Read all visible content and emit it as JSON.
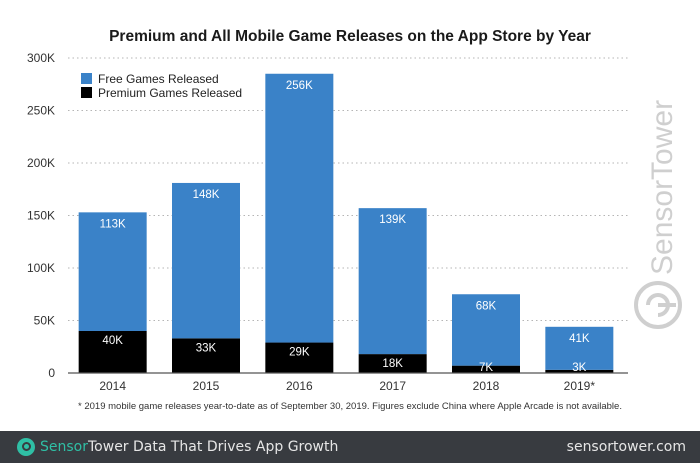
{
  "chart_data": {
    "type": "bar",
    "stacked": true,
    "title": "Premium and All Mobile Game Releases on the App Store by Year",
    "xlabel": "",
    "ylabel": "",
    "categories": [
      "2014",
      "2015",
      "2016",
      "2017",
      "2018",
      "2019*"
    ],
    "series": [
      {
        "name": "Premium Games Released",
        "color": "#000000",
        "values": [
          40,
          33,
          29,
          18,
          7,
          3
        ],
        "labels": [
          "40K",
          "33K",
          "29K",
          "18K",
          "7K",
          "3K"
        ]
      },
      {
        "name": "Free Games Released",
        "color": "#3a82c8",
        "values": [
          113,
          148,
          256,
          139,
          68,
          41
        ],
        "labels": [
          "113K",
          "148K",
          "256K",
          "139K",
          "68K",
          "41K"
        ]
      }
    ],
    "units": "thousands",
    "ylim": [
      0,
      300
    ],
    "yticks": [
      0,
      50,
      100,
      150,
      200,
      250,
      300
    ],
    "ytick_labels": [
      "0",
      "50K",
      "100K",
      "150K",
      "200K",
      "250K",
      "300K"
    ],
    "grid": "horizontal-dotted",
    "legend": {
      "placement": "top-left",
      "order": [
        "Free Games Released",
        "Premium Games Released"
      ]
    }
  },
  "footnote": "* 2019 mobile game releases year-to-date as of September 30, 2019. Figures exclude China where Apple Arcade is not available.",
  "watermark": "SensorTower",
  "footer": {
    "brand_part1": "Sensor",
    "brand_part2": "Tower",
    "tagline": "Data That Drives App Growth",
    "url": "sensortower.com"
  }
}
